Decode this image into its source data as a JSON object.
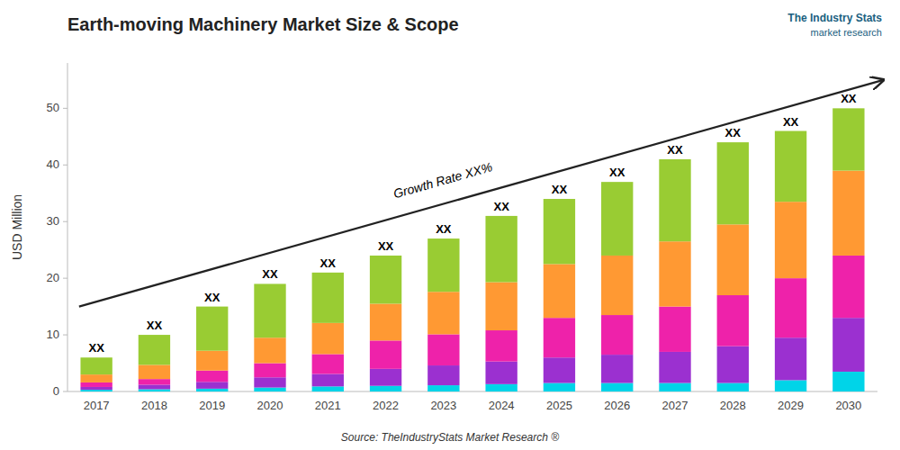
{
  "chart_data": {
    "type": "bar",
    "stacked": true,
    "grid": false,
    "title": "Earth-moving Machinery Market Size & Scope",
    "ylabel": "USD Million",
    "source": "Source: TheIndustryStats Market Research ®",
    "brand": "The Industry Stats",
    "brand_subtitle": "market research",
    "categories": [
      "2017",
      "2018",
      "2019",
      "2020",
      "2021",
      "2022",
      "2023",
      "2024",
      "2025",
      "2026",
      "2027",
      "2028",
      "2029",
      "2030"
    ],
    "series": [
      {
        "color": "#00d4e8",
        "values": [
          0.3,
          0.4,
          0.5,
          0.7,
          0.9,
          1.0,
          1.1,
          1.3,
          1.5,
          1.5,
          1.5,
          1.5,
          2.0,
          3.5
        ]
      },
      {
        "color": "#9b30d0",
        "values": [
          0.5,
          0.8,
          1.2,
          1.8,
          2.2,
          3.0,
          3.5,
          4.0,
          4.5,
          5.0,
          5.5,
          6.5,
          7.5,
          9.5
        ]
      },
      {
        "color": "#ee22aa",
        "values": [
          0.8,
          1.0,
          2.0,
          2.5,
          3.5,
          5.0,
          5.5,
          5.5,
          7.0,
          7.0,
          8.0,
          9.0,
          10.5,
          11.0
        ]
      },
      {
        "color": "#ff9933",
        "values": [
          1.4,
          2.5,
          3.5,
          4.5,
          5.5,
          6.5,
          7.5,
          8.5,
          9.5,
          10.5,
          11.5,
          12.5,
          13.5,
          15.0
        ]
      },
      {
        "color": "#99cc33",
        "values": [
          3.0,
          5.3,
          7.8,
          9.5,
          8.9,
          8.5,
          9.4,
          11.7,
          11.5,
          13.0,
          14.5,
          14.5,
          12.5,
          11.0
        ]
      }
    ],
    "totals": [
      6,
      10,
      15,
      19,
      21,
      24,
      27,
      31,
      34,
      37,
      41,
      44,
      46,
      50
    ],
    "total_labels": [
      "XX",
      "XX",
      "XX",
      "XX",
      "XX",
      "XX",
      "XX",
      "XX",
      "XX",
      "XX",
      "XX",
      "XX",
      "XX",
      "XX"
    ],
    "annotations": [
      {
        "text": "Growth Rate XX%",
        "x0": -0.3,
        "y0": 15,
        "x1": 13.6,
        "y1": 55
      }
    ],
    "ylim": [
      0,
      58
    ],
    "yticks": [
      0,
      10,
      20,
      30,
      40,
      50
    ]
  }
}
